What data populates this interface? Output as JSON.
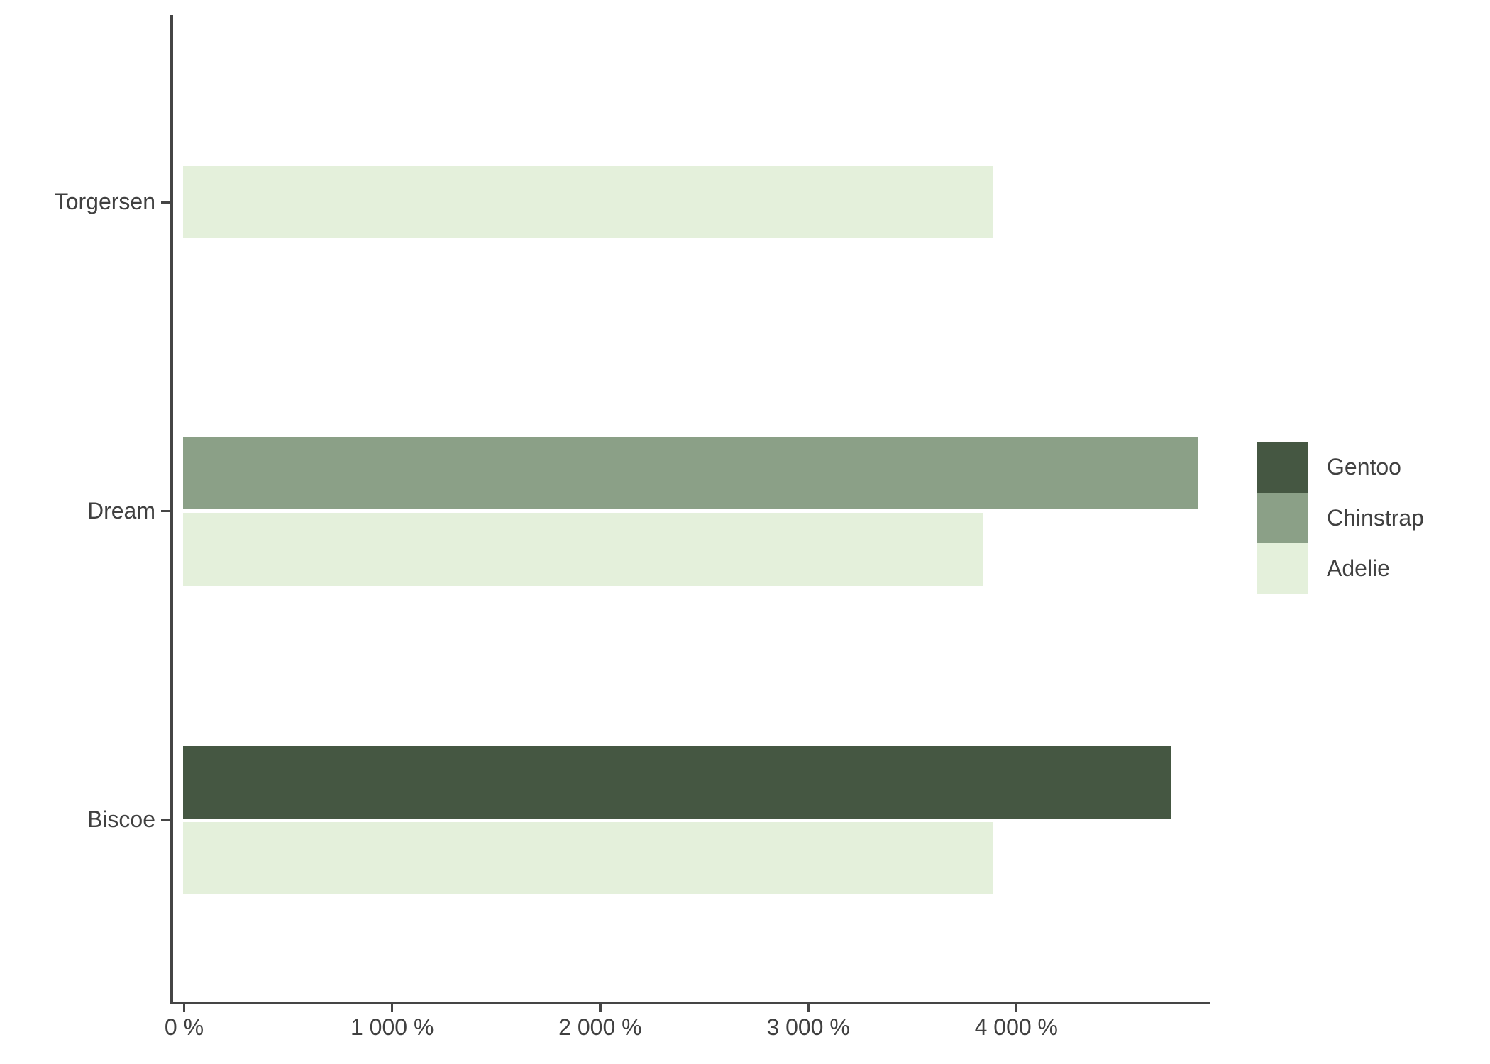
{
  "chart_data": {
    "type": "bar",
    "orientation": "horizontal",
    "title": "",
    "xlabel": "",
    "ylabel": "",
    "categories": [
      "Torgersen",
      "Dream",
      "Biscoe"
    ],
    "series": [
      {
        "name": "Gentoo",
        "color": "#455742",
        "values": [
          null,
          null,
          4750
        ]
      },
      {
        "name": "Chinstrap",
        "color": "#8BA087",
        "values": [
          null,
          4883,
          null
        ]
      },
      {
        "name": "Adelie",
        "color": "#E4F0DB",
        "values": [
          3895,
          3850,
          3898
        ]
      }
    ],
    "value_unit": "%",
    "x_ticks": [
      {
        "value": 0,
        "label": "0 %"
      },
      {
        "value": 1000,
        "label": "1 000 %"
      },
      {
        "value": 2000,
        "label": "2 000 %"
      },
      {
        "value": 3000,
        "label": "3 000 %"
      },
      {
        "value": 4000,
        "label": "4 000 %"
      }
    ],
    "x_range_shown": [
      0,
      4930
    ],
    "grid": false,
    "legend": {
      "position": "right",
      "entries": [
        "Gentoo",
        "Chinstrap",
        "Adelie"
      ]
    },
    "axis_color": "#454545",
    "text_color": "#404040",
    "background_color": "#ffffff"
  }
}
